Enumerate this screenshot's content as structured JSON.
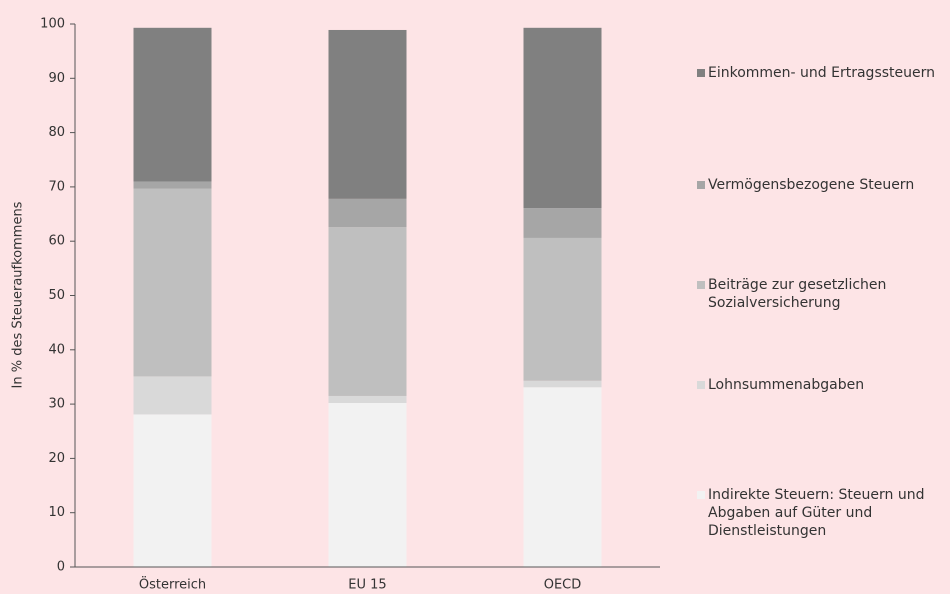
{
  "chart_data": {
    "type": "stacked_bar",
    "y_axis_label": "In % des Steueraufkommens",
    "categories": [
      "Österreich",
      "EU 15",
      "OECD"
    ],
    "series": [
      {
        "name": "Indirekte Steuern: Steuern und Abgaben auf Güter und Dienstleistungen",
        "color": "#f2f2f2",
        "values": [
          28.1,
          30.2,
          33.1
        ]
      },
      {
        "name": "Lohnsummenabgaben",
        "color": "#d9d9d9",
        "values": [
          7.0,
          1.3,
          1.2
        ]
      },
      {
        "name": "Beiträge zur gesetzlichen Sozialversicherung",
        "color": "#bfbfbf",
        "values": [
          34.6,
          31.1,
          26.3
        ]
      },
      {
        "name": "Vermögensbezogene Steuern",
        "color": "#a6a6a6",
        "values": [
          1.3,
          5.2,
          5.5
        ]
      },
      {
        "name": "Einkommen- und Ertragssteuern",
        "color": "#808080",
        "values": [
          28.3,
          31.1,
          33.2
        ]
      }
    ],
    "ylim": [
      0,
      100
    ],
    "yticks": [
      0,
      10,
      20,
      30,
      40,
      50,
      60,
      70,
      80,
      90,
      100
    ]
  }
}
